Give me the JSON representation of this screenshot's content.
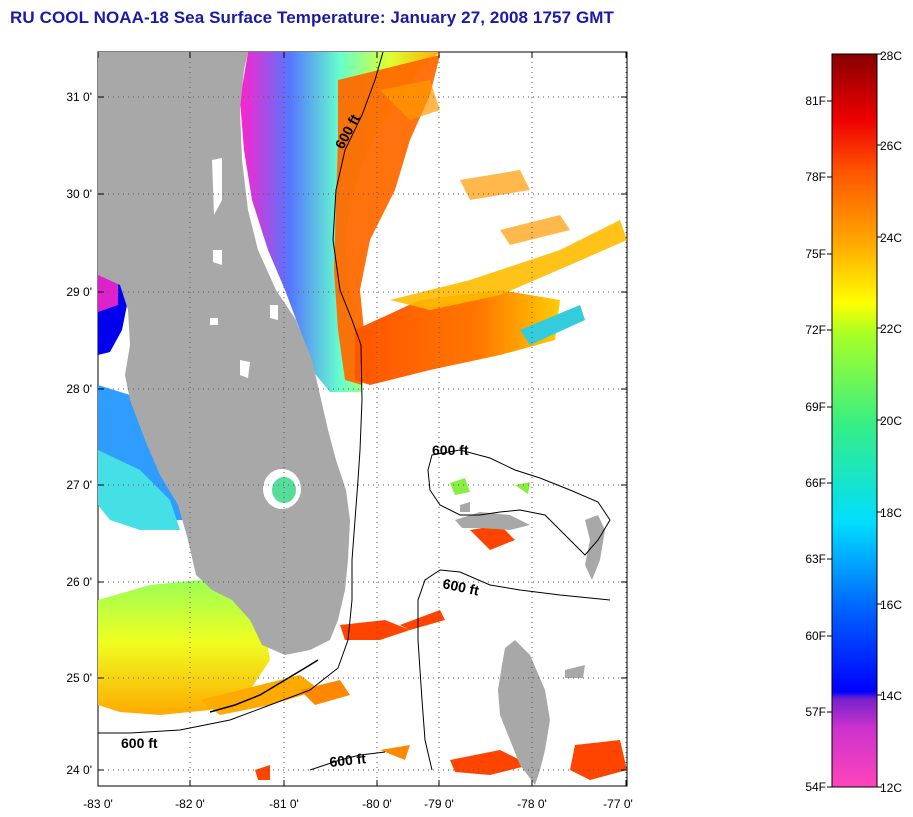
{
  "title": "RU COOL  NOAA-18  Sea Surface Temperature:  January 27, 2008 1757 GMT",
  "map": {
    "lon_ticks": [
      "-83 0'",
      "-82 0'",
      "-81 0'",
      "-80 0'",
      "-79 0'",
      "-78 0'",
      "-77 0'"
    ],
    "lat_ticks": [
      "31 0'",
      "30 0'",
      "29 0'",
      "28 0'",
      "27 0'",
      "26 0'",
      "25 0'",
      "24 0'"
    ],
    "contour_labels": [
      "600 ft",
      "600 ft",
      "600 ft",
      "600 ft",
      "600 ft"
    ],
    "land_color": "#a8a8a8",
    "ocean_color": "#ffffff"
  },
  "colorbar": {
    "celsius_labels": [
      "28C",
      "26C",
      "24C",
      "22C",
      "20C",
      "18C",
      "16C",
      "14C",
      "12C"
    ],
    "fahrenheit_labels": [
      "81F",
      "78F",
      "75F",
      "72F",
      "69F",
      "66F",
      "63F",
      "60F",
      "57F",
      "54F"
    ]
  }
}
